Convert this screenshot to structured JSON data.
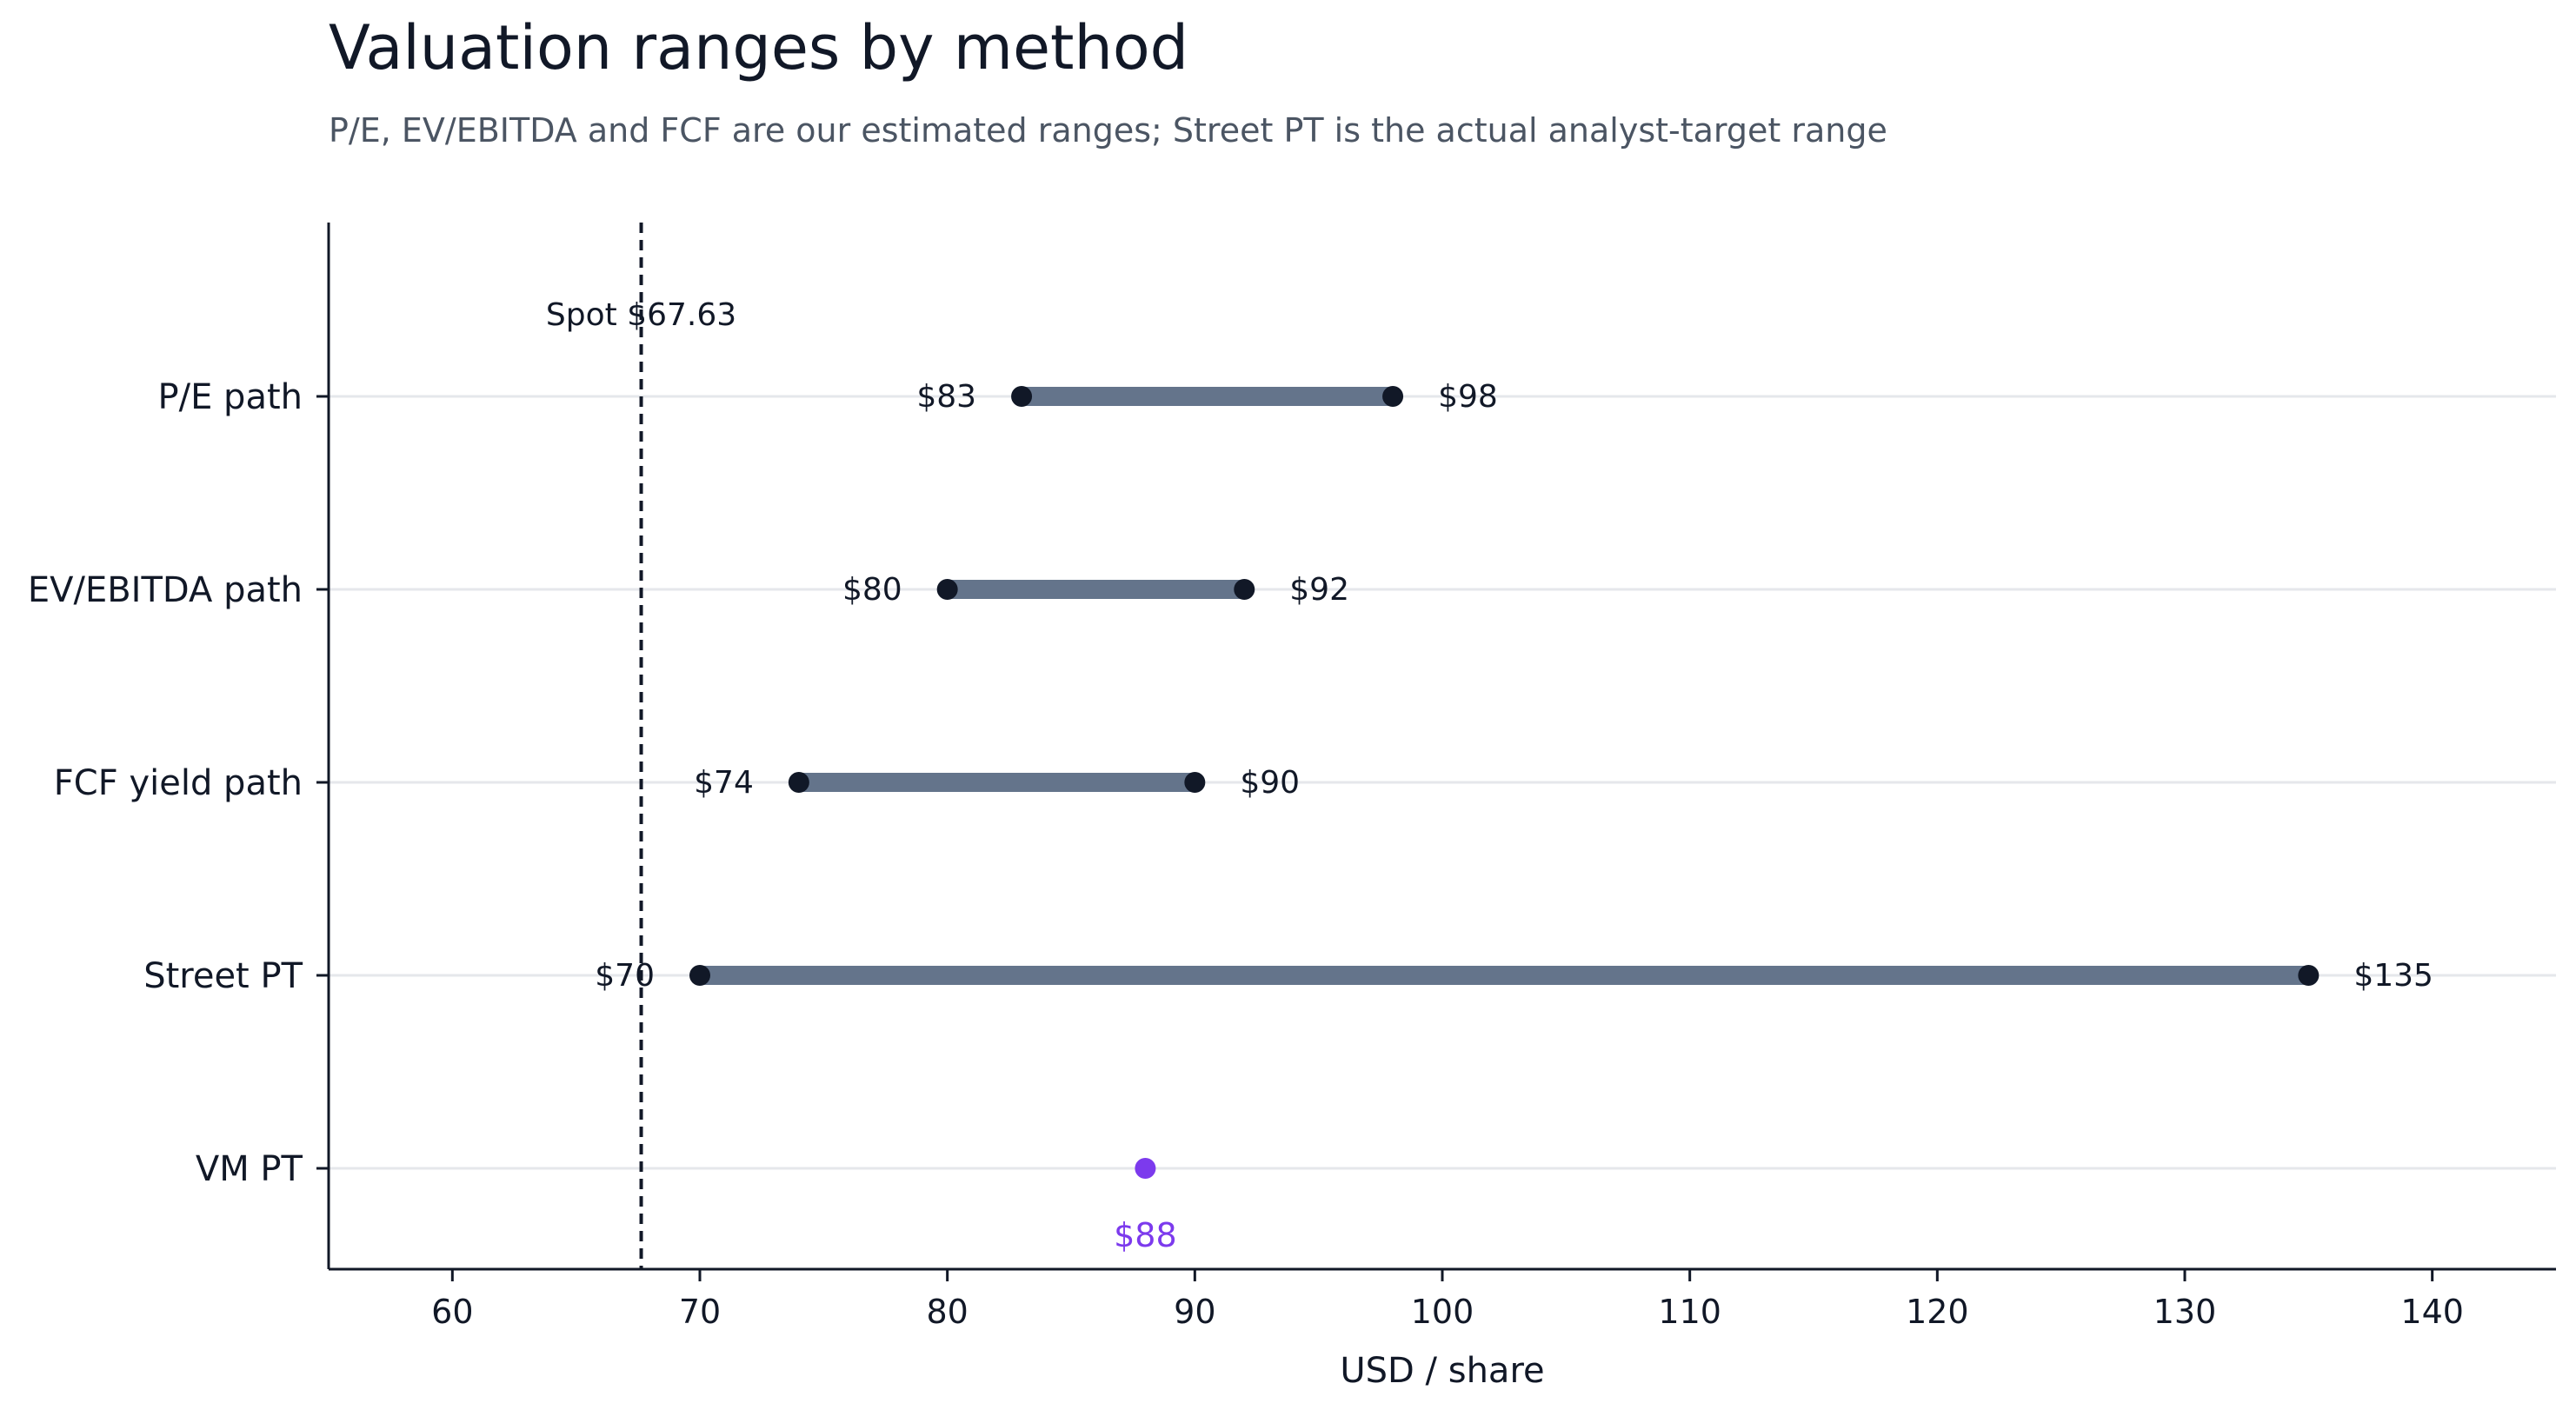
{
  "chart_data": {
    "type": "dumbbell",
    "title": "Valuation ranges by method",
    "subtitle": "P/E, EV/EBITDA and FCF are our estimated ranges; Street PT is the actual analyst-target range",
    "xlabel": "USD / share",
    "xlim": [
      55,
      145
    ],
    "xticks": [
      60,
      70,
      80,
      90,
      100,
      110,
      120,
      130,
      140
    ],
    "grid": "horizontal",
    "reference_line": {
      "value": 67.63,
      "label": "Spot $67.63",
      "style": "dashed"
    },
    "rows": [
      {
        "label": "P/E path",
        "low": 83,
        "high": 98,
        "low_label": "$83",
        "high_label": "$98"
      },
      {
        "label": "EV/EBITDA path",
        "low": 80,
        "high": 92,
        "low_label": "$80",
        "high_label": "$92"
      },
      {
        "label": "FCF yield path",
        "low": 74,
        "high": 90,
        "low_label": "$74",
        "high_label": "$90"
      },
      {
        "label": "Street PT",
        "low": 70,
        "high": 135,
        "low_label": "$70",
        "high_label": "$135"
      }
    ],
    "point": {
      "label": "VM PT",
      "value": 88,
      "value_label": "$88"
    },
    "colors": {
      "range_bar": "#64748b",
      "endpoint": "#111827",
      "point": "#7c3aed",
      "grid": "#e5e7eb",
      "axis": "#111827"
    }
  }
}
